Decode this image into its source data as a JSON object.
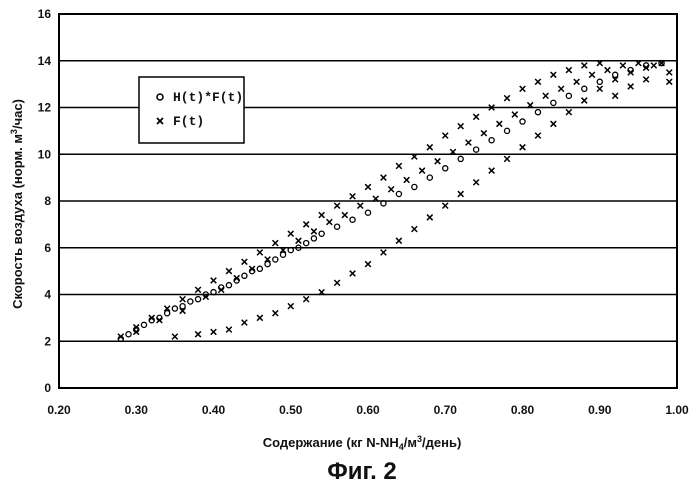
{
  "chart_data": {
    "type": "scatter",
    "xlabel_prefix": "Содержание (кг N-NH",
    "xlabel_sub": "4",
    "xlabel_mid": "/м",
    "xlabel_sup": "3",
    "xlabel_suffix": "/день)",
    "ylabel_prefix": "Скорость воздуха (норм. м",
    "ylabel_sup": "3",
    "ylabel_suffix": "/час)",
    "xlim": [
      0.2,
      1.0
    ],
    "ylim": [
      0,
      16
    ],
    "x_ticks": [
      "0.20",
      "0.30",
      "0.40",
      "0.50",
      "0.60",
      "0.70",
      "0.80",
      "0.90",
      "1.00"
    ],
    "y_ticks": [
      "0",
      "2",
      "4",
      "6",
      "8",
      "10",
      "12",
      "14",
      "16"
    ],
    "grid": "horizontal",
    "legend_position": "top-left",
    "series": [
      {
        "name": "H(t)*F(t)",
        "marker": "circle",
        "points": [
          [
            0.28,
            2.1
          ],
          [
            0.29,
            2.3
          ],
          [
            0.3,
            2.5
          ],
          [
            0.31,
            2.7
          ],
          [
            0.32,
            2.9
          ],
          [
            0.33,
            3.0
          ],
          [
            0.34,
            3.2
          ],
          [
            0.35,
            3.4
          ],
          [
            0.36,
            3.5
          ],
          [
            0.37,
            3.7
          ],
          [
            0.38,
            3.8
          ],
          [
            0.39,
            4.0
          ],
          [
            0.4,
            4.1
          ],
          [
            0.41,
            4.3
          ],
          [
            0.42,
            4.4
          ],
          [
            0.43,
            4.6
          ],
          [
            0.44,
            4.8
          ],
          [
            0.45,
            5.0
          ],
          [
            0.46,
            5.1
          ],
          [
            0.47,
            5.3
          ],
          [
            0.48,
            5.5
          ],
          [
            0.49,
            5.7
          ],
          [
            0.5,
            5.9
          ],
          [
            0.51,
            6.0
          ],
          [
            0.52,
            6.2
          ],
          [
            0.53,
            6.4
          ],
          [
            0.54,
            6.6
          ],
          [
            0.56,
            6.9
          ],
          [
            0.58,
            7.2
          ],
          [
            0.6,
            7.5
          ],
          [
            0.62,
            7.9
          ],
          [
            0.64,
            8.3
          ],
          [
            0.66,
            8.6
          ],
          [
            0.68,
            9.0
          ],
          [
            0.7,
            9.4
          ],
          [
            0.72,
            9.8
          ],
          [
            0.74,
            10.2
          ],
          [
            0.76,
            10.6
          ],
          [
            0.78,
            11.0
          ],
          [
            0.8,
            11.4
          ],
          [
            0.82,
            11.8
          ],
          [
            0.84,
            12.2
          ],
          [
            0.86,
            12.5
          ],
          [
            0.88,
            12.8
          ],
          [
            0.9,
            13.1
          ],
          [
            0.92,
            13.4
          ],
          [
            0.94,
            13.6
          ],
          [
            0.96,
            13.8
          ],
          [
            0.98,
            13.9
          ]
        ]
      },
      {
        "name": "F(t)",
        "marker": "cross",
        "points": [
          [
            0.28,
            2.2
          ],
          [
            0.3,
            2.6
          ],
          [
            0.32,
            3.0
          ],
          [
            0.34,
            3.4
          ],
          [
            0.36,
            3.8
          ],
          [
            0.38,
            4.2
          ],
          [
            0.4,
            4.6
          ],
          [
            0.42,
            5.0
          ],
          [
            0.44,
            5.4
          ],
          [
            0.46,
            5.8
          ],
          [
            0.48,
            6.2
          ],
          [
            0.5,
            6.6
          ],
          [
            0.52,
            7.0
          ],
          [
            0.54,
            7.4
          ],
          [
            0.56,
            7.8
          ],
          [
            0.58,
            8.2
          ],
          [
            0.6,
            8.6
          ],
          [
            0.62,
            9.0
          ],
          [
            0.64,
            9.5
          ],
          [
            0.66,
            9.9
          ],
          [
            0.68,
            10.3
          ],
          [
            0.7,
            10.8
          ],
          [
            0.72,
            11.2
          ],
          [
            0.74,
            11.6
          ],
          [
            0.76,
            12.0
          ],
          [
            0.78,
            12.4
          ],
          [
            0.8,
            12.8
          ],
          [
            0.82,
            13.1
          ],
          [
            0.84,
            13.4
          ],
          [
            0.86,
            13.6
          ],
          [
            0.88,
            13.8
          ],
          [
            0.9,
            13.9
          ],
          [
            0.35,
            2.2
          ],
          [
            0.38,
            2.3
          ],
          [
            0.4,
            2.4
          ],
          [
            0.42,
            2.5
          ],
          [
            0.44,
            2.8
          ],
          [
            0.46,
            3.0
          ],
          [
            0.48,
            3.2
          ],
          [
            0.5,
            3.5
          ],
          [
            0.52,
            3.8
          ],
          [
            0.54,
            4.1
          ],
          [
            0.56,
            4.5
          ],
          [
            0.58,
            4.9
          ],
          [
            0.6,
            5.3
          ],
          [
            0.62,
            5.8
          ],
          [
            0.64,
            6.3
          ],
          [
            0.66,
            6.8
          ],
          [
            0.68,
            7.3
          ],
          [
            0.7,
            7.8
          ],
          [
            0.72,
            8.3
          ],
          [
            0.74,
            8.8
          ],
          [
            0.76,
            9.3
          ],
          [
            0.78,
            9.8
          ],
          [
            0.8,
            10.3
          ],
          [
            0.82,
            10.8
          ],
          [
            0.84,
            11.3
          ],
          [
            0.86,
            11.8
          ],
          [
            0.88,
            12.3
          ],
          [
            0.9,
            12.8
          ],
          [
            0.92,
            13.2
          ],
          [
            0.94,
            13.5
          ],
          [
            0.96,
            13.7
          ],
          [
            0.98,
            13.9
          ],
          [
            0.3,
            2.4
          ],
          [
            0.33,
            2.9
          ],
          [
            0.36,
            3.3
          ],
          [
            0.39,
            3.9
          ],
          [
            0.41,
            4.2
          ],
          [
            0.43,
            4.7
          ],
          [
            0.45,
            5.1
          ],
          [
            0.47,
            5.5
          ],
          [
            0.49,
            5.9
          ],
          [
            0.51,
            6.3
          ],
          [
            0.53,
            6.7
          ],
          [
            0.55,
            7.1
          ],
          [
            0.57,
            7.4
          ],
          [
            0.59,
            7.8
          ],
          [
            0.61,
            8.1
          ],
          [
            0.63,
            8.5
          ],
          [
            0.65,
            8.9
          ],
          [
            0.67,
            9.3
          ],
          [
            0.69,
            9.7
          ],
          [
            0.71,
            10.1
          ],
          [
            0.73,
            10.5
          ],
          [
            0.75,
            10.9
          ],
          [
            0.77,
            11.3
          ],
          [
            0.79,
            11.7
          ],
          [
            0.81,
            12.1
          ],
          [
            0.83,
            12.5
          ],
          [
            0.85,
            12.8
          ],
          [
            0.87,
            13.1
          ],
          [
            0.89,
            13.4
          ],
          [
            0.91,
            13.6
          ],
          [
            0.93,
            13.8
          ],
          [
            0.95,
            13.9
          ],
          [
            0.97,
            13.8
          ],
          [
            0.99,
            13.5
          ],
          [
            0.96,
            13.2
          ],
          [
            0.94,
            12.9
          ],
          [
            0.92,
            12.5
          ],
          [
            0.99,
            13.1
          ]
        ]
      }
    ]
  },
  "caption": "Фиг. 2"
}
